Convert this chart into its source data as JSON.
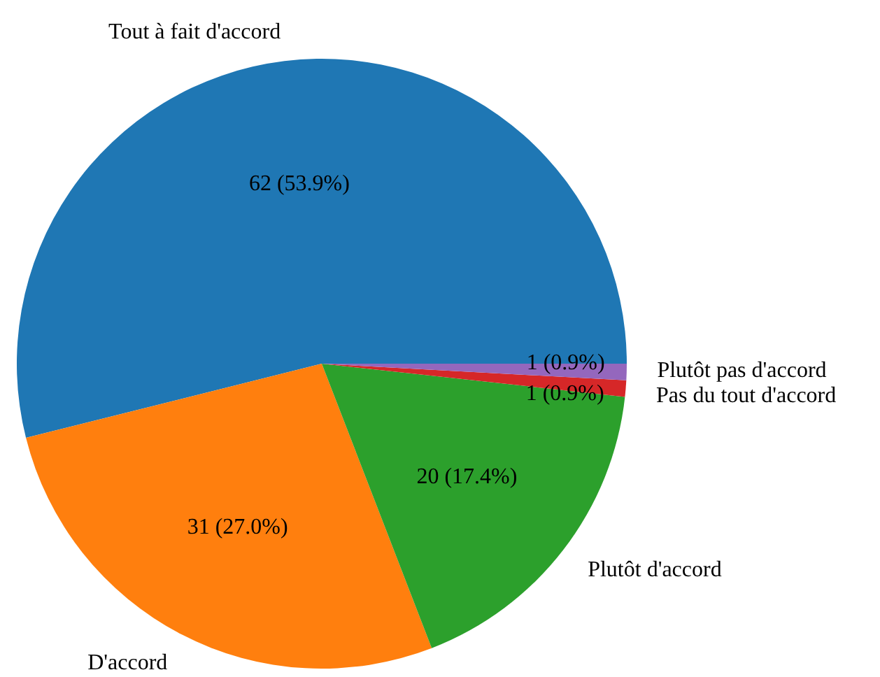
{
  "chart_data": {
    "type": "pie",
    "categories": [
      "Tout à fait d'accord",
      "D'accord",
      "Plutôt d'accord",
      "Pas du tout d'accord",
      "Plutôt pas d'accord"
    ],
    "values": [
      62,
      31,
      20,
      1,
      1
    ],
    "value_labels": [
      "62 (53.9%)",
      "31 (27.0%)",
      "20 (17.4%)",
      "1 (0.9%)",
      "1 (0.9%)"
    ],
    "colors": [
      "#1f77b4",
      "#ff7f0e",
      "#2ca02c",
      "#d62728",
      "#9467bd"
    ],
    "legend": false
  }
}
